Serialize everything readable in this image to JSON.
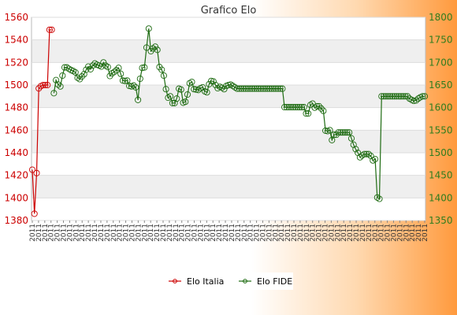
{
  "chart_data": {
    "type": "line",
    "title": "Grafico Elo",
    "xlabel": "",
    "ylabel": "",
    "grid": true,
    "legend_position": "bottom",
    "y_left": {
      "range": [
        1380,
        1560
      ],
      "ticks": [
        1380,
        1400,
        1420,
        1440,
        1460,
        1480,
        1500,
        1520,
        1540,
        1560
      ],
      "color": "#cc0000"
    },
    "y_right": {
      "range": [
        1350,
        1800
      ],
      "ticks": [
        1350,
        1400,
        1450,
        1500,
        1550,
        1600,
        1650,
        1700,
        1750,
        1800
      ],
      "color": "#2e7d1e"
    },
    "x_tick_label": "2011",
    "series": [
      {
        "name": "Elo Italia",
        "axis": "left",
        "color": "#cc0000",
        "points": [
          [
            0,
            1425
          ],
          [
            1,
            1386
          ],
          [
            2,
            1422
          ],
          [
            3,
            1497
          ],
          [
            4,
            1499
          ],
          [
            5,
            1500
          ],
          [
            6,
            1500
          ],
          [
            7,
            1500
          ],
          [
            8,
            1549
          ],
          [
            9,
            1549
          ]
        ]
      },
      {
        "name": "Elo FIDE",
        "axis": "right",
        "color": "#1e6b12",
        "points": [
          [
            10,
            1632
          ],
          [
            11,
            1661
          ],
          [
            12,
            1651
          ],
          [
            13,
            1647
          ],
          [
            14,
            1671
          ],
          [
            15,
            1689
          ],
          [
            16,
            1689
          ],
          [
            17,
            1686
          ],
          [
            18,
            1683
          ],
          [
            19,
            1681
          ],
          [
            20,
            1678
          ],
          [
            21,
            1666
          ],
          [
            22,
            1663
          ],
          [
            23,
            1669
          ],
          [
            24,
            1674
          ],
          [
            25,
            1684
          ],
          [
            26,
            1691
          ],
          [
            27,
            1685
          ],
          [
            28,
            1693
          ],
          [
            29,
            1698
          ],
          [
            30,
            1695
          ],
          [
            31,
            1693
          ],
          [
            32,
            1691
          ],
          [
            33,
            1700
          ],
          [
            34,
            1693
          ],
          [
            35,
            1690
          ],
          [
            36,
            1670
          ],
          [
            37,
            1676
          ],
          [
            38,
            1679
          ],
          [
            39,
            1683
          ],
          [
            40,
            1688
          ],
          [
            41,
            1675
          ],
          [
            42,
            1660
          ],
          [
            43,
            1659
          ],
          [
            44,
            1660
          ],
          [
            45,
            1648
          ],
          [
            46,
            1647
          ],
          [
            47,
            1649
          ],
          [
            48,
            1645
          ],
          [
            49,
            1617
          ],
          [
            50,
            1664
          ],
          [
            51,
            1688
          ],
          [
            52,
            1689
          ],
          [
            53,
            1733
          ],
          [
            54,
            1775
          ],
          [
            55,
            1725
          ],
          [
            56,
            1731
          ],
          [
            57,
            1735
          ],
          [
            58,
            1728
          ],
          [
            59,
            1690
          ],
          [
            60,
            1684
          ],
          [
            61,
            1671
          ],
          [
            62,
            1641
          ],
          [
            63,
            1622
          ],
          [
            64,
            1625
          ],
          [
            65,
            1610
          ],
          [
            66,
            1610
          ],
          [
            67,
            1620
          ],
          [
            68,
            1642
          ],
          [
            69,
            1640
          ],
          [
            70,
            1611
          ],
          [
            71,
            1613
          ],
          [
            72,
            1629
          ],
          [
            73,
            1654
          ],
          [
            74,
            1657
          ],
          [
            75,
            1641
          ],
          [
            76,
            1640
          ],
          [
            77,
            1639
          ],
          [
            78,
            1643
          ],
          [
            79,
            1645
          ],
          [
            80,
            1636
          ],
          [
            81,
            1634
          ],
          [
            82,
            1652
          ],
          [
            83,
            1659
          ],
          [
            84,
            1658
          ],
          [
            85,
            1650
          ],
          [
            86,
            1643
          ],
          [
            87,
            1646
          ],
          [
            88,
            1644
          ],
          [
            89,
            1641
          ],
          [
            90,
            1648
          ],
          [
            91,
            1650
          ],
          [
            92,
            1651
          ],
          [
            93,
            1648
          ],
          [
            94,
            1645
          ],
          [
            95,
            1642
          ],
          [
            96,
            1642
          ],
          [
            97,
            1642
          ],
          [
            98,
            1642
          ],
          [
            99,
            1642
          ],
          [
            100,
            1642
          ],
          [
            101,
            1642
          ],
          [
            102,
            1642
          ],
          [
            103,
            1642
          ],
          [
            104,
            1642
          ],
          [
            105,
            1642
          ],
          [
            106,
            1642
          ],
          [
            107,
            1642
          ],
          [
            108,
            1642
          ],
          [
            109,
            1642
          ],
          [
            110,
            1642
          ],
          [
            111,
            1642
          ],
          [
            112,
            1642
          ],
          [
            113,
            1642
          ],
          [
            114,
            1642
          ],
          [
            115,
            1642
          ],
          [
            116,
            1642
          ],
          [
            117,
            1601
          ],
          [
            118,
            1601
          ],
          [
            119,
            1601
          ],
          [
            120,
            1601
          ],
          [
            121,
            1601
          ],
          [
            122,
            1601
          ],
          [
            123,
            1601
          ],
          [
            124,
            1601
          ],
          [
            125,
            1601
          ],
          [
            126,
            1601
          ],
          [
            127,
            1587
          ],
          [
            128,
            1587
          ],
          [
            129,
            1606
          ],
          [
            130,
            1609
          ],
          [
            131,
            1600
          ],
          [
            132,
            1603
          ],
          [
            133,
            1603
          ],
          [
            134,
            1598
          ],
          [
            135,
            1593
          ],
          [
            136,
            1549
          ],
          [
            137,
            1548
          ],
          [
            138,
            1550
          ],
          [
            139,
            1528
          ],
          [
            140,
            1540
          ],
          [
            141,
            1540
          ],
          [
            142,
            1545
          ],
          [
            143,
            1545
          ],
          [
            144,
            1545
          ],
          [
            145,
            1545
          ],
          [
            146,
            1545
          ],
          [
            147,
            1545
          ],
          [
            148,
            1532
          ],
          [
            149,
            1518
          ],
          [
            150,
            1508
          ],
          [
            151,
            1500
          ],
          [
            152,
            1490
          ],
          [
            153,
            1494
          ],
          [
            154,
            1497
          ],
          [
            155,
            1497
          ],
          [
            156,
            1497
          ],
          [
            157,
            1493
          ],
          [
            158,
            1483
          ],
          [
            159,
            1486
          ],
          [
            160,
            1401
          ],
          [
            161,
            1398
          ],
          [
            162,
            1625
          ],
          [
            163,
            1625
          ],
          [
            164,
            1625
          ],
          [
            165,
            1625
          ],
          [
            166,
            1625
          ],
          [
            167,
            1625
          ],
          [
            168,
            1625
          ],
          [
            169,
            1625
          ],
          [
            170,
            1625
          ],
          [
            171,
            1625
          ],
          [
            172,
            1625
          ],
          [
            173,
            1625
          ],
          [
            174,
            1625
          ],
          [
            175,
            1620
          ],
          [
            176,
            1617
          ],
          [
            177,
            1615
          ],
          [
            178,
            1616
          ],
          [
            179,
            1620
          ],
          [
            180,
            1623
          ],
          [
            181,
            1625
          ],
          [
            182,
            1625
          ]
        ]
      }
    ]
  }
}
